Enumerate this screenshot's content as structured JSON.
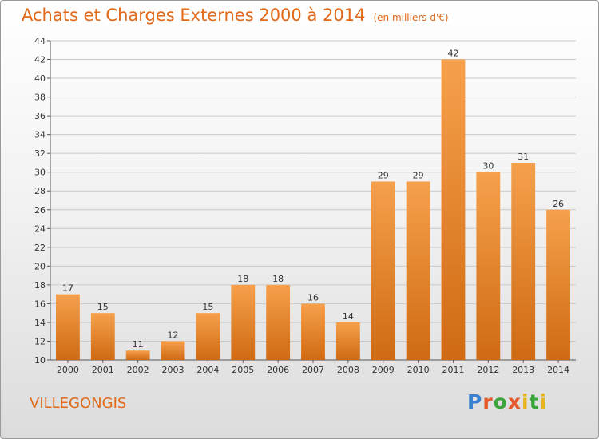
{
  "title": "Achats et Charges Externes 2000 à 2014",
  "unit": "(en milliers d'€)",
  "commune": "VILLEGONGIS",
  "logo_text": "Proxiti",
  "colors": {
    "bar_light": "#f6a04c",
    "bar_dark": "#cf6a12",
    "title": "#e06a1a",
    "grid": "#c8c8c8"
  },
  "chart_data": {
    "type": "bar",
    "categories": [
      "2000",
      "2001",
      "2002",
      "2003",
      "2004",
      "2005",
      "2006",
      "2007",
      "2008",
      "2009",
      "2010",
      "2011",
      "2012",
      "2013",
      "2014"
    ],
    "values": [
      17,
      15,
      11,
      12,
      15,
      18,
      18,
      16,
      14,
      29,
      29,
      42,
      30,
      31,
      26
    ],
    "ylim": [
      10,
      44
    ],
    "yticks": [
      10,
      12,
      14,
      16,
      18,
      20,
      22,
      24,
      26,
      28,
      30,
      32,
      34,
      36,
      38,
      40,
      42,
      44
    ],
    "grid": true,
    "xlabel": "",
    "ylabel": ""
  }
}
